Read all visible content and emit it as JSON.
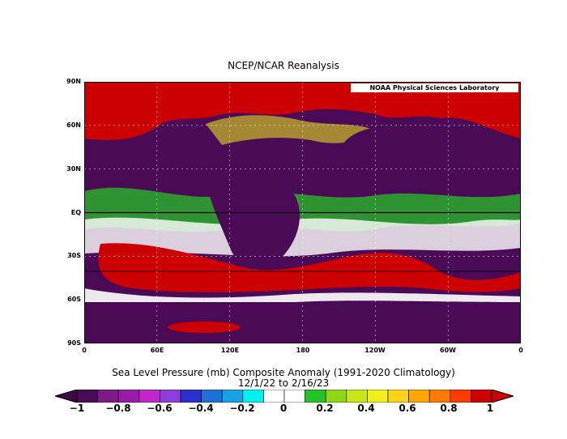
{
  "header": {
    "title": "NCEP/NCAR Reanalysis"
  },
  "map": {
    "credit": "NOAA Physical Sciences Laboratory",
    "lat_labels": [
      "90N",
      "60N",
      "30N",
      "EQ",
      "30S",
      "60S",
      "90S"
    ],
    "lon_labels": [
      "0",
      "60E",
      "120E",
      "180",
      "120W",
      "60W",
      "0"
    ]
  },
  "footer": {
    "variable_title": "Sea Level Pressure (mb) Composite Anomaly (1991-2020 Climatology)",
    "date_range": "12/1/22  to 2/16/23"
  },
  "colorbar": {
    "colors": [
      "#4b0a55",
      "#7d1a87",
      "#9b1aa8",
      "#c026cc",
      "#8e3ddd",
      "#2b31c8",
      "#1e6fd6",
      "#1aa0e6",
      "#00f0f0",
      "#ffffff",
      "#ffffff",
      "#27c127",
      "#8fd614",
      "#c8e61a",
      "#f0f01a",
      "#ffd21a",
      "#ffa500",
      "#ff7a00",
      "#ff3b00",
      "#cc0000"
    ],
    "under_color": "#3a0a40",
    "over_color": "#cc0000",
    "labels": [
      "−1",
      "−0.8",
      "−0.6",
      "−0.4",
      "−0.2",
      "0",
      "0.2",
      "0.4",
      "0.6",
      "0.8",
      "1"
    ]
  },
  "colors": {
    "positive_fill": "#cc0000",
    "negative_fill": "#4b0a55",
    "map_background": "#4b0a55"
  }
}
